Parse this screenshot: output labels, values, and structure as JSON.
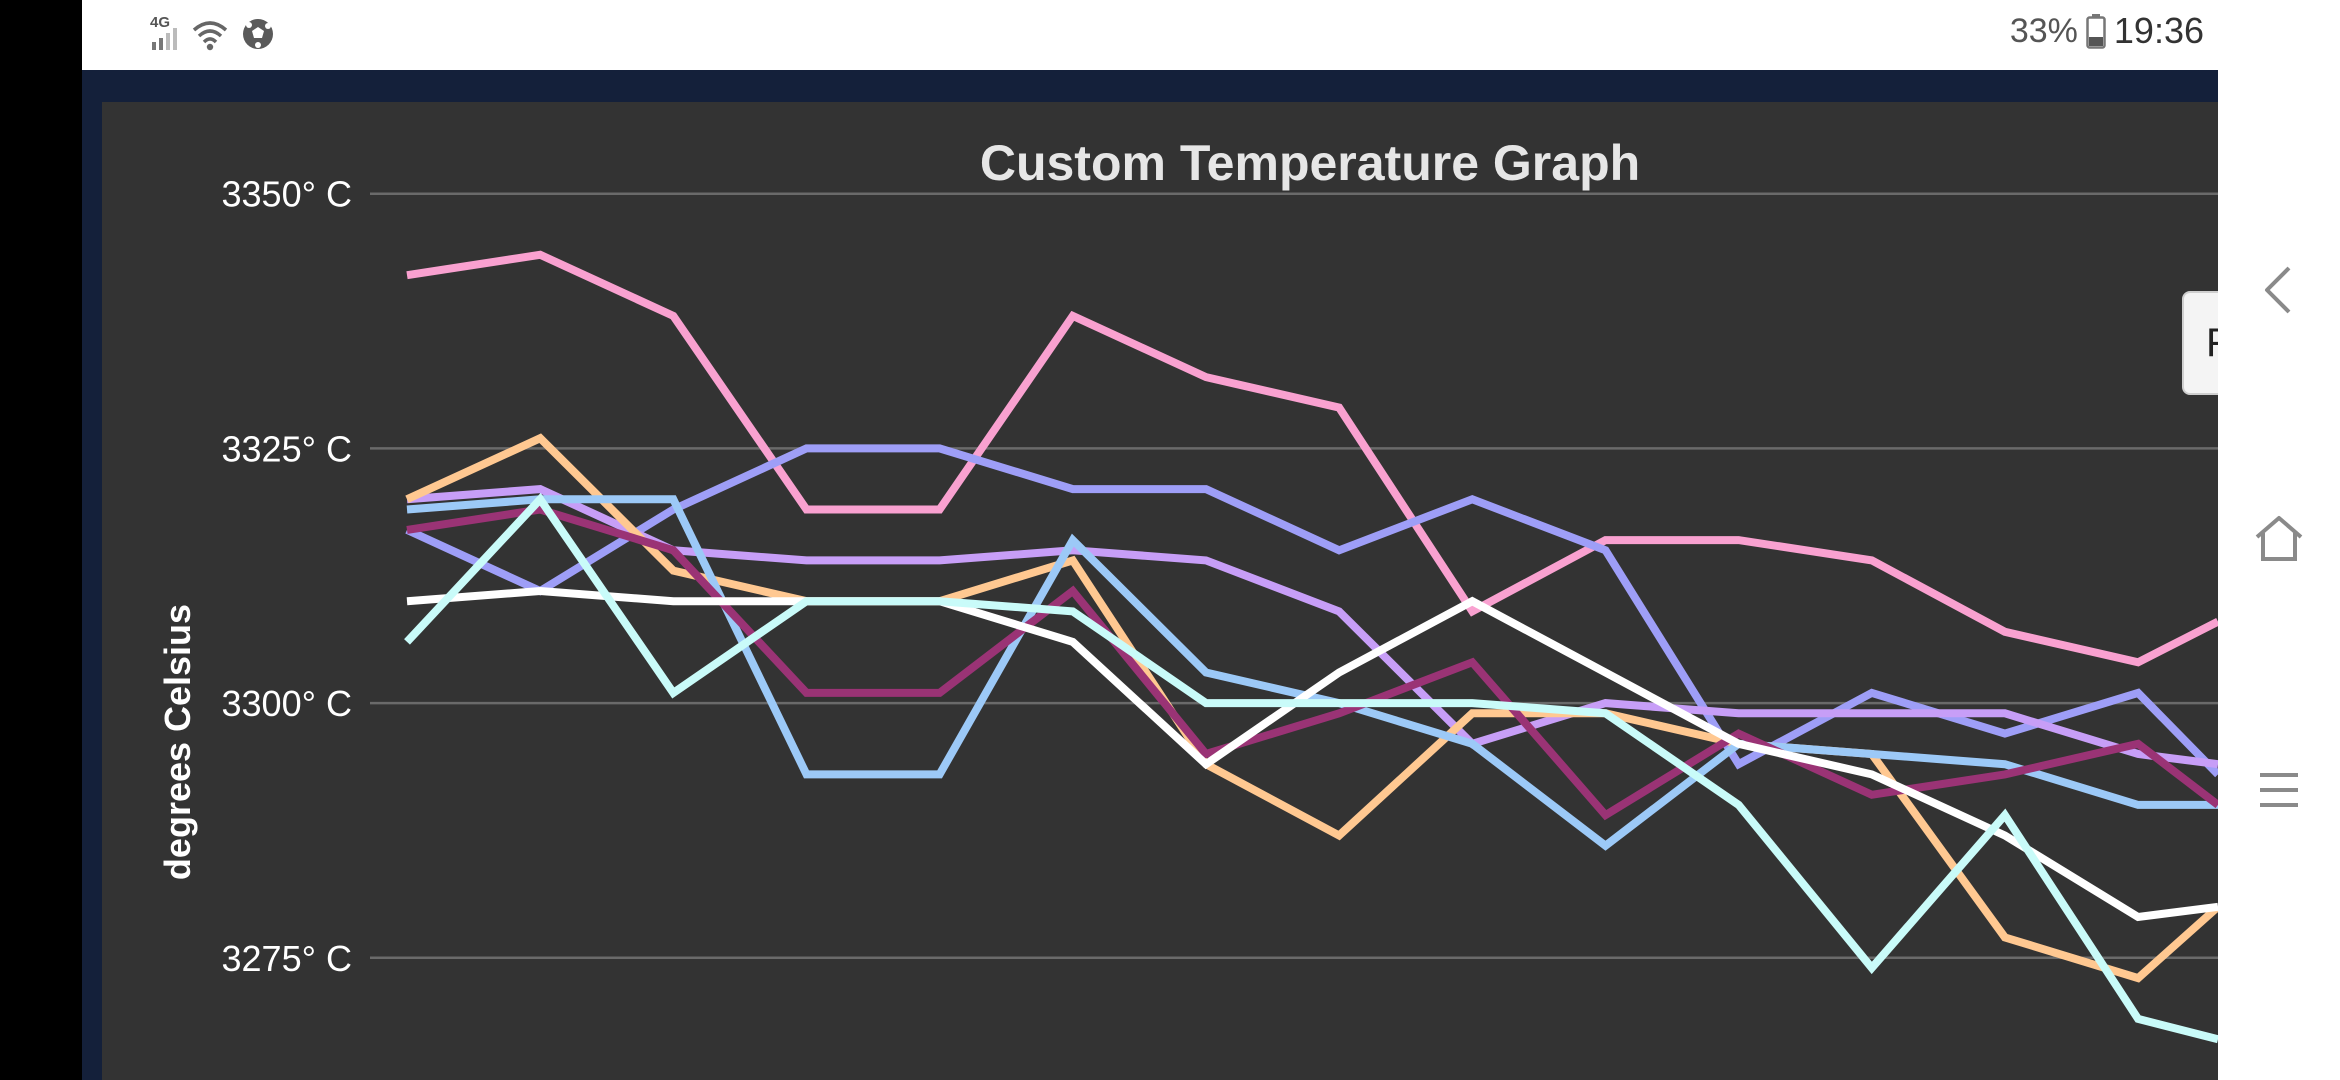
{
  "status_bar": {
    "network_label": "4G",
    "battery_percent": "33%",
    "time": "19:36",
    "icons": [
      "signal-icon",
      "wifi-icon",
      "soccer-ball-icon",
      "battery-icon"
    ]
  },
  "side_tab": {
    "label": "F"
  },
  "navigation_bar": {
    "buttons": [
      "back-icon",
      "home-icon",
      "recents-icon"
    ]
  },
  "colors": {
    "chart_background": "#333333",
    "gridline": "#6a6a6a",
    "app_frame": "#14203a"
  },
  "chart_data": {
    "type": "line",
    "title": "Custom Temperature Graph",
    "ylabel": "degrees Celsius",
    "xlabel": "",
    "ylim": [
      3263,
      3359
    ],
    "xlim": [
      0,
      13.6
    ],
    "y_ticks": [
      3275,
      3300,
      3325,
      3350
    ],
    "y_tick_labels": [
      "3275° C",
      "3300° C",
      "3325° C",
      "3350° C"
    ],
    "grid": true,
    "x": [
      0,
      1,
      2,
      3,
      4,
      5,
      6,
      7,
      8,
      9,
      10,
      11,
      12,
      13,
      13.6
    ],
    "series": [
      {
        "color": "#f9a1d0",
        "values": [
          3342,
          3344,
          3338,
          3319,
          3319,
          3338,
          3332,
          3329,
          3309,
          3316,
          3316,
          3314,
          3307,
          3304,
          3308
        ]
      },
      {
        "color": "#9e9ef7",
        "values": [
          3317,
          3311,
          3319,
          3325,
          3325,
          3321,
          3321,
          3315,
          3320,
          3315,
          3294,
          3301,
          3297,
          3301,
          3293
        ]
      },
      {
        "color": "#c79ef7",
        "values": [
          3320,
          3321,
          3315,
          3314,
          3314,
          3315,
          3314,
          3309,
          3296,
          3300,
          3299,
          3299,
          3299,
          3295,
          3294
        ]
      },
      {
        "color": "#ffc891",
        "values": [
          3320,
          3326,
          3313,
          3310,
          3310,
          3314,
          3294,
          3287,
          3299,
          3299,
          3296,
          3295,
          3277,
          3273,
          3280
        ]
      },
      {
        "color": "#9cc9f7",
        "values": [
          3319,
          3320,
          3320,
          3293,
          3293,
          3316,
          3303,
          3300,
          3296,
          3286,
          3296,
          3295,
          3294,
          3290,
          3290
        ]
      },
      {
        "color": "#9a3375",
        "values": [
          3317,
          3319,
          3315,
          3301,
          3301,
          3311,
          3295,
          3299,
          3304,
          3289,
          3297,
          3291,
          3293,
          3296,
          3290
        ]
      },
      {
        "color": "#ffffff",
        "values": [
          3310,
          3311,
          3310,
          3310,
          3310,
          3306,
          3294,
          3303,
          3310,
          3303,
          3296,
          3293,
          3287,
          3279,
          3280
        ]
      },
      {
        "color": "#c9fbf9",
        "values": [
          3306,
          3320,
          3301,
          3310,
          3310,
          3309,
          3300,
          3300,
          3300,
          3299,
          3290,
          3274,
          3289,
          3269,
          3267
        ]
      }
    ]
  }
}
